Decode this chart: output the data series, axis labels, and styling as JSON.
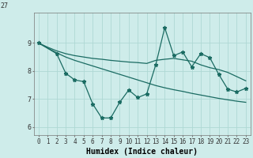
{
  "title": "",
  "xlabel": "Humidex (Indice chaleur)",
  "bg_color": "#ceecea",
  "grid_color": "#aed8d4",
  "line_color": "#1a6b62",
  "xlim": [
    -0.5,
    23.5
  ],
  "ylim": [
    5.7,
    10.1
  ],
  "xticks": [
    0,
    1,
    2,
    3,
    4,
    5,
    6,
    7,
    8,
    9,
    10,
    11,
    12,
    13,
    14,
    15,
    16,
    17,
    18,
    19,
    20,
    21,
    22,
    23
  ],
  "yticks": [
    6,
    7,
    8,
    9
  ],
  "ytop_label": "27",
  "line1_x": [
    0,
    1,
    2,
    3,
    4,
    5,
    6,
    7,
    8,
    9,
    10,
    11,
    12,
    13,
    14,
    15,
    16,
    17,
    18,
    19,
    20,
    21,
    22,
    23
  ],
  "line1_y": [
    9.0,
    8.85,
    8.72,
    8.62,
    8.55,
    8.5,
    8.45,
    8.42,
    8.38,
    8.35,
    8.32,
    8.3,
    8.27,
    8.38,
    8.42,
    8.45,
    8.4,
    8.35,
    8.22,
    8.12,
    8.05,
    7.95,
    7.8,
    7.65
  ],
  "line2_x": [
    0,
    1,
    2,
    3,
    4,
    5,
    6,
    7,
    8,
    9,
    10,
    11,
    12,
    13,
    14,
    15,
    16,
    17,
    18,
    19,
    20,
    21,
    22,
    23
  ],
  "line2_y": [
    9.0,
    8.82,
    8.65,
    8.5,
    8.38,
    8.28,
    8.18,
    8.08,
    7.98,
    7.88,
    7.78,
    7.68,
    7.58,
    7.48,
    7.4,
    7.33,
    7.27,
    7.2,
    7.14,
    7.08,
    7.02,
    6.97,
    6.92,
    6.88
  ],
  "line3_x": [
    0,
    2,
    3,
    4,
    5,
    6,
    7,
    8,
    9,
    10,
    11,
    12,
    13,
    14,
    15,
    16,
    17,
    18,
    19,
    20,
    21,
    22,
    23
  ],
  "line3_y": [
    9.0,
    8.62,
    7.92,
    7.68,
    7.62,
    6.82,
    6.32,
    6.32,
    6.88,
    7.32,
    7.05,
    7.18,
    8.22,
    9.55,
    8.55,
    8.68,
    8.15,
    8.62,
    8.48,
    7.88,
    7.35,
    7.25,
    7.38
  ],
  "xlabel_fontsize": 7,
  "ytick_fontsize": 6,
  "xtick_fontsize": 5.5
}
